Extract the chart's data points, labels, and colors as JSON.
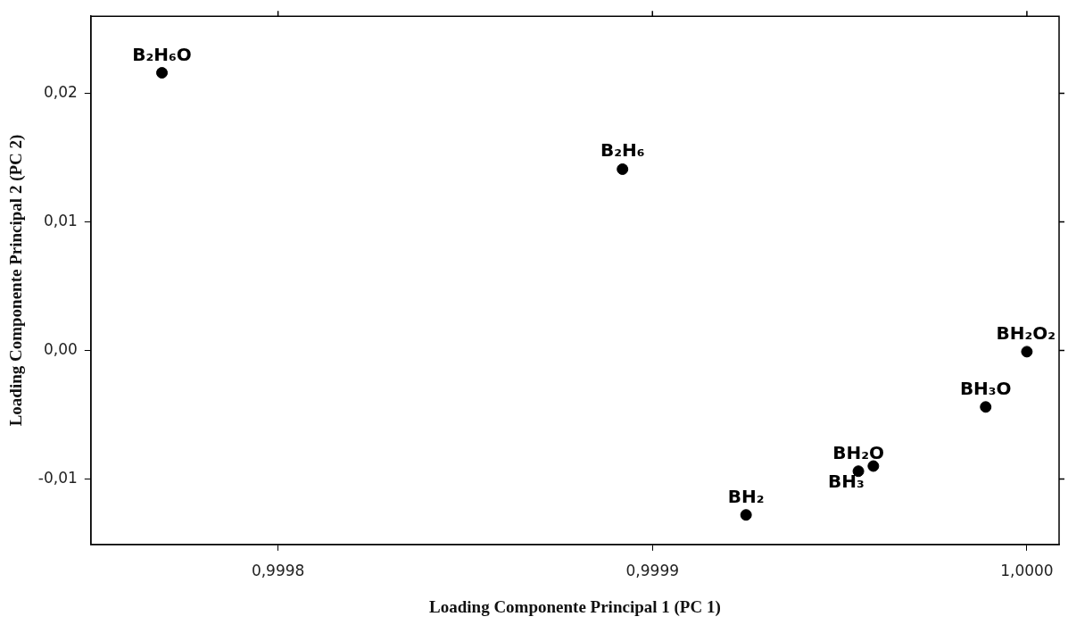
{
  "chart_data": {
    "type": "scatter",
    "xlabel": "Loading Componente Principal 1 (PC 1)",
    "ylabel": "Loading Componente Principal 2 (PC 2)",
    "x": [
      0.999769,
      0.999892,
      1.0,
      0.999989,
      0.999955,
      0.999959,
      0.999925
    ],
    "values": [
      0.0216,
      0.0141,
      -0.0001,
      -0.0044,
      -0.0094,
      -0.009,
      -0.0128
    ],
    "color": "#000000",
    "marker": "circle",
    "grid": false,
    "legend": false,
    "xlim": [
      0.99975,
      1.0000086
    ],
    "ylim": [
      -0.0151,
      0.026
    ],
    "xticks": [
      {
        "value": 0.9998,
        "label": "0,9998"
      },
      {
        "value": 0.9999,
        "label": "0,9999"
      },
      {
        "value": 1.0,
        "label": "1,0000"
      }
    ],
    "yticks": [
      {
        "value": -0.01,
        "label": "-0,01"
      },
      {
        "value": 0.0,
        "label": "0,00"
      },
      {
        "value": 0.01,
        "label": "0,01"
      },
      {
        "value": 0.02,
        "label": "0,02"
      }
    ],
    "annotations": [
      {
        "text": "B₂H₆O",
        "x": 0.999769,
        "y": 0.0216
      },
      {
        "text": "B₂H₆",
        "x": 0.999892,
        "y": 0.0141
      },
      {
        "text": "BH₂O₂",
        "x": 1.0,
        "y": -0.0001
      },
      {
        "text": "BH₃O",
        "x": 0.999989,
        "y": -0.0044
      },
      {
        "text": "BH₂O",
        "x": 0.999955,
        "y": -0.0094
      },
      {
        "text": "BH₃",
        "x": 0.999959,
        "y": -0.009
      },
      {
        "text": "BH₂",
        "x": 0.999925,
        "y": -0.0128
      }
    ]
  }
}
